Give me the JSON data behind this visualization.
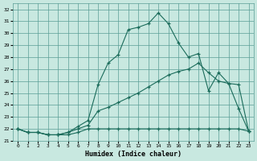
{
  "xlabel": "Humidex (Indice chaleur)",
  "bg_color": "#c8e8e0",
  "grid_color": "#5a9e96",
  "line_color": "#1a6b5a",
  "xlim": [
    -0.5,
    23.5
  ],
  "ylim": [
    21.0,
    32.5
  ],
  "yticks": [
    21,
    22,
    23,
    24,
    25,
    26,
    27,
    28,
    29,
    30,
    31,
    32
  ],
  "xticks": [
    0,
    1,
    2,
    3,
    4,
    5,
    6,
    7,
    8,
    9,
    10,
    11,
    12,
    13,
    14,
    15,
    16,
    17,
    18,
    19,
    20,
    21,
    22,
    23
  ],
  "series1_x": [
    0,
    1,
    2,
    3,
    4,
    5,
    6,
    7,
    8,
    9,
    10,
    11,
    12,
    13,
    14,
    15,
    16,
    17,
    18,
    19,
    20,
    21,
    22,
    23
  ],
  "series1_y": [
    22.0,
    21.7,
    21.7,
    21.5,
    21.5,
    21.5,
    21.7,
    22.0,
    22.0,
    22.0,
    22.0,
    22.0,
    22.0,
    22.0,
    22.0,
    22.0,
    22.0,
    22.0,
    22.0,
    22.0,
    22.0,
    22.0,
    22.0,
    21.8
  ],
  "series2_x": [
    0,
    1,
    2,
    3,
    4,
    5,
    6,
    7,
    8,
    9,
    10,
    11,
    12,
    13,
    14,
    15,
    16,
    17,
    18,
    19,
    20,
    21,
    22,
    23
  ],
  "series2_y": [
    22.0,
    21.7,
    21.7,
    21.5,
    21.5,
    21.7,
    22.0,
    22.3,
    23.5,
    23.8,
    24.2,
    24.6,
    25.0,
    25.5,
    26.0,
    26.5,
    26.8,
    27.0,
    27.5,
    26.7,
    26.0,
    25.8,
    25.7,
    21.8
  ],
  "series3_x": [
    0,
    1,
    2,
    3,
    4,
    5,
    6,
    7,
    8,
    9,
    10,
    11,
    12,
    13,
    14,
    15,
    16,
    17,
    18,
    19,
    20,
    21,
    22,
    23
  ],
  "series3_y": [
    22.0,
    21.7,
    21.7,
    21.5,
    21.5,
    21.7,
    22.2,
    22.7,
    25.7,
    27.5,
    28.2,
    30.3,
    30.5,
    30.8,
    31.7,
    30.8,
    29.2,
    28.0,
    28.3,
    25.2,
    26.7,
    25.8,
    23.7,
    21.8
  ]
}
